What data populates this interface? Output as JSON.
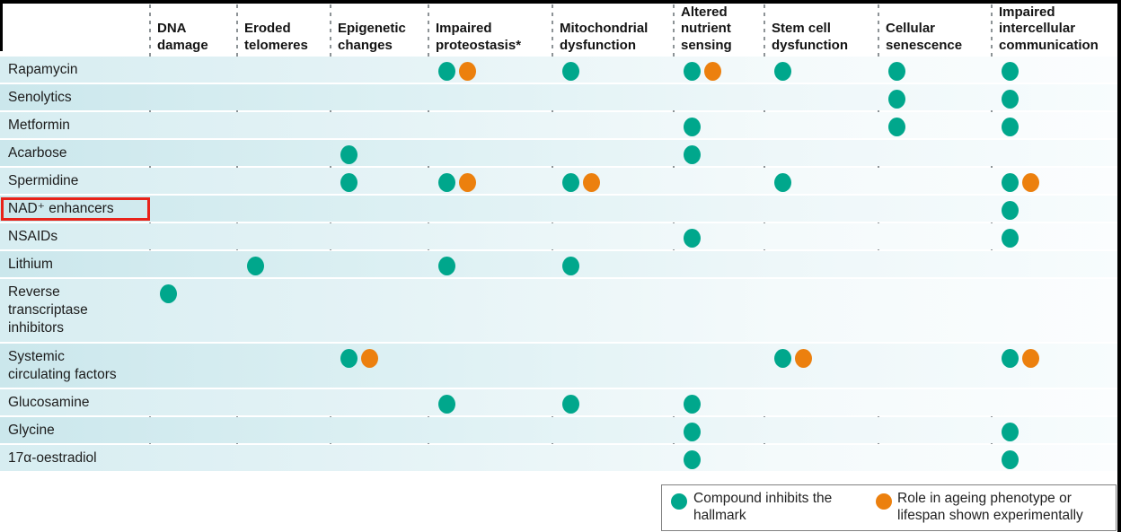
{
  "colors": {
    "inhibits": "#00a78c",
    "experimental": "#ec800e",
    "highlight": "#e8231a",
    "row_tint": "#cde8ed"
  },
  "legend": {
    "items": [
      {
        "mark": "inhibits",
        "color": "#00a78c",
        "label": "Compound inhibits the hallmark"
      },
      {
        "mark": "experimental",
        "color": "#ec800e",
        "label": "Role in ageing phenotype or lifespan shown experimentally"
      }
    ]
  },
  "chart_data": {
    "type": "table",
    "title": "",
    "columns": [
      "DNA damage",
      "Eroded telomeres",
      "Epigenetic changes",
      "Impaired proteostasis*",
      "Mitochondrial dysfunction",
      "Altered nutrient sensing",
      "Stem cell dysfunction",
      "Cellular senescence",
      "Impaired intercellular communication"
    ],
    "rows": [
      "Rapamycin",
      "Senolytics",
      "Metformin",
      "Acarbose",
      "Spermidine",
      "NAD⁺ enhancers",
      "NSAIDs",
      "Lithium",
      "Reverse transcriptase inhibitors",
      "Systemic circulating factors",
      "Glucosamine",
      "Glycine",
      "17α-oestradiol"
    ],
    "highlighted_row": "NAD⁺ enhancers",
    "mark_legend": {
      "inhibits": "Compound inhibits the hallmark",
      "both": "Compound inhibits the hallmark + role in ageing phenotype or lifespan shown experimentally"
    },
    "marks": {
      "Rapamycin": {
        "Impaired proteostasis*": "both",
        "Mitochondrial dysfunction": "inhibits",
        "Altered nutrient sensing": "both",
        "Stem cell dysfunction": "inhibits",
        "Cellular senescence": "inhibits",
        "Impaired intercellular communication": "inhibits"
      },
      "Senolytics": {
        "Cellular senescence": "inhibits",
        "Impaired intercellular communication": "inhibits"
      },
      "Metformin": {
        "Altered nutrient sensing": "inhibits",
        "Cellular senescence": "inhibits",
        "Impaired intercellular communication": "inhibits"
      },
      "Acarbose": {
        "Epigenetic changes": "inhibits",
        "Altered nutrient sensing": "inhibits"
      },
      "Spermidine": {
        "Epigenetic changes": "inhibits",
        "Impaired proteostasis*": "both",
        "Mitochondrial dysfunction": "both",
        "Stem cell dysfunction": "inhibits",
        "Impaired intercellular communication": "both"
      },
      "NAD⁺ enhancers": {
        "Impaired intercellular communication": "inhibits"
      },
      "NSAIDs": {
        "Altered nutrient sensing": "inhibits",
        "Impaired intercellular communication": "inhibits"
      },
      "Lithium": {
        "Eroded telomeres": "inhibits",
        "Impaired proteostasis*": "inhibits",
        "Mitochondrial dysfunction": "inhibits"
      },
      "Reverse transcriptase inhibitors": {
        "DNA damage": "inhibits"
      },
      "Systemic circulating factors": {
        "Epigenetic changes": "both",
        "Stem cell dysfunction": "both",
        "Impaired intercellular communication": "both"
      },
      "Glucosamine": {
        "Impaired proteostasis*": "inhibits",
        "Mitochondrial dysfunction": "inhibits",
        "Altered nutrient sensing": "inhibits"
      },
      "Glycine": {
        "Altered nutrient sensing": "inhibits",
        "Impaired intercellular communication": "inhibits"
      },
      "17α-oestradiol": {
        "Altered nutrient sensing": "inhibits",
        "Impaired intercellular communication": "inhibits"
      }
    }
  }
}
